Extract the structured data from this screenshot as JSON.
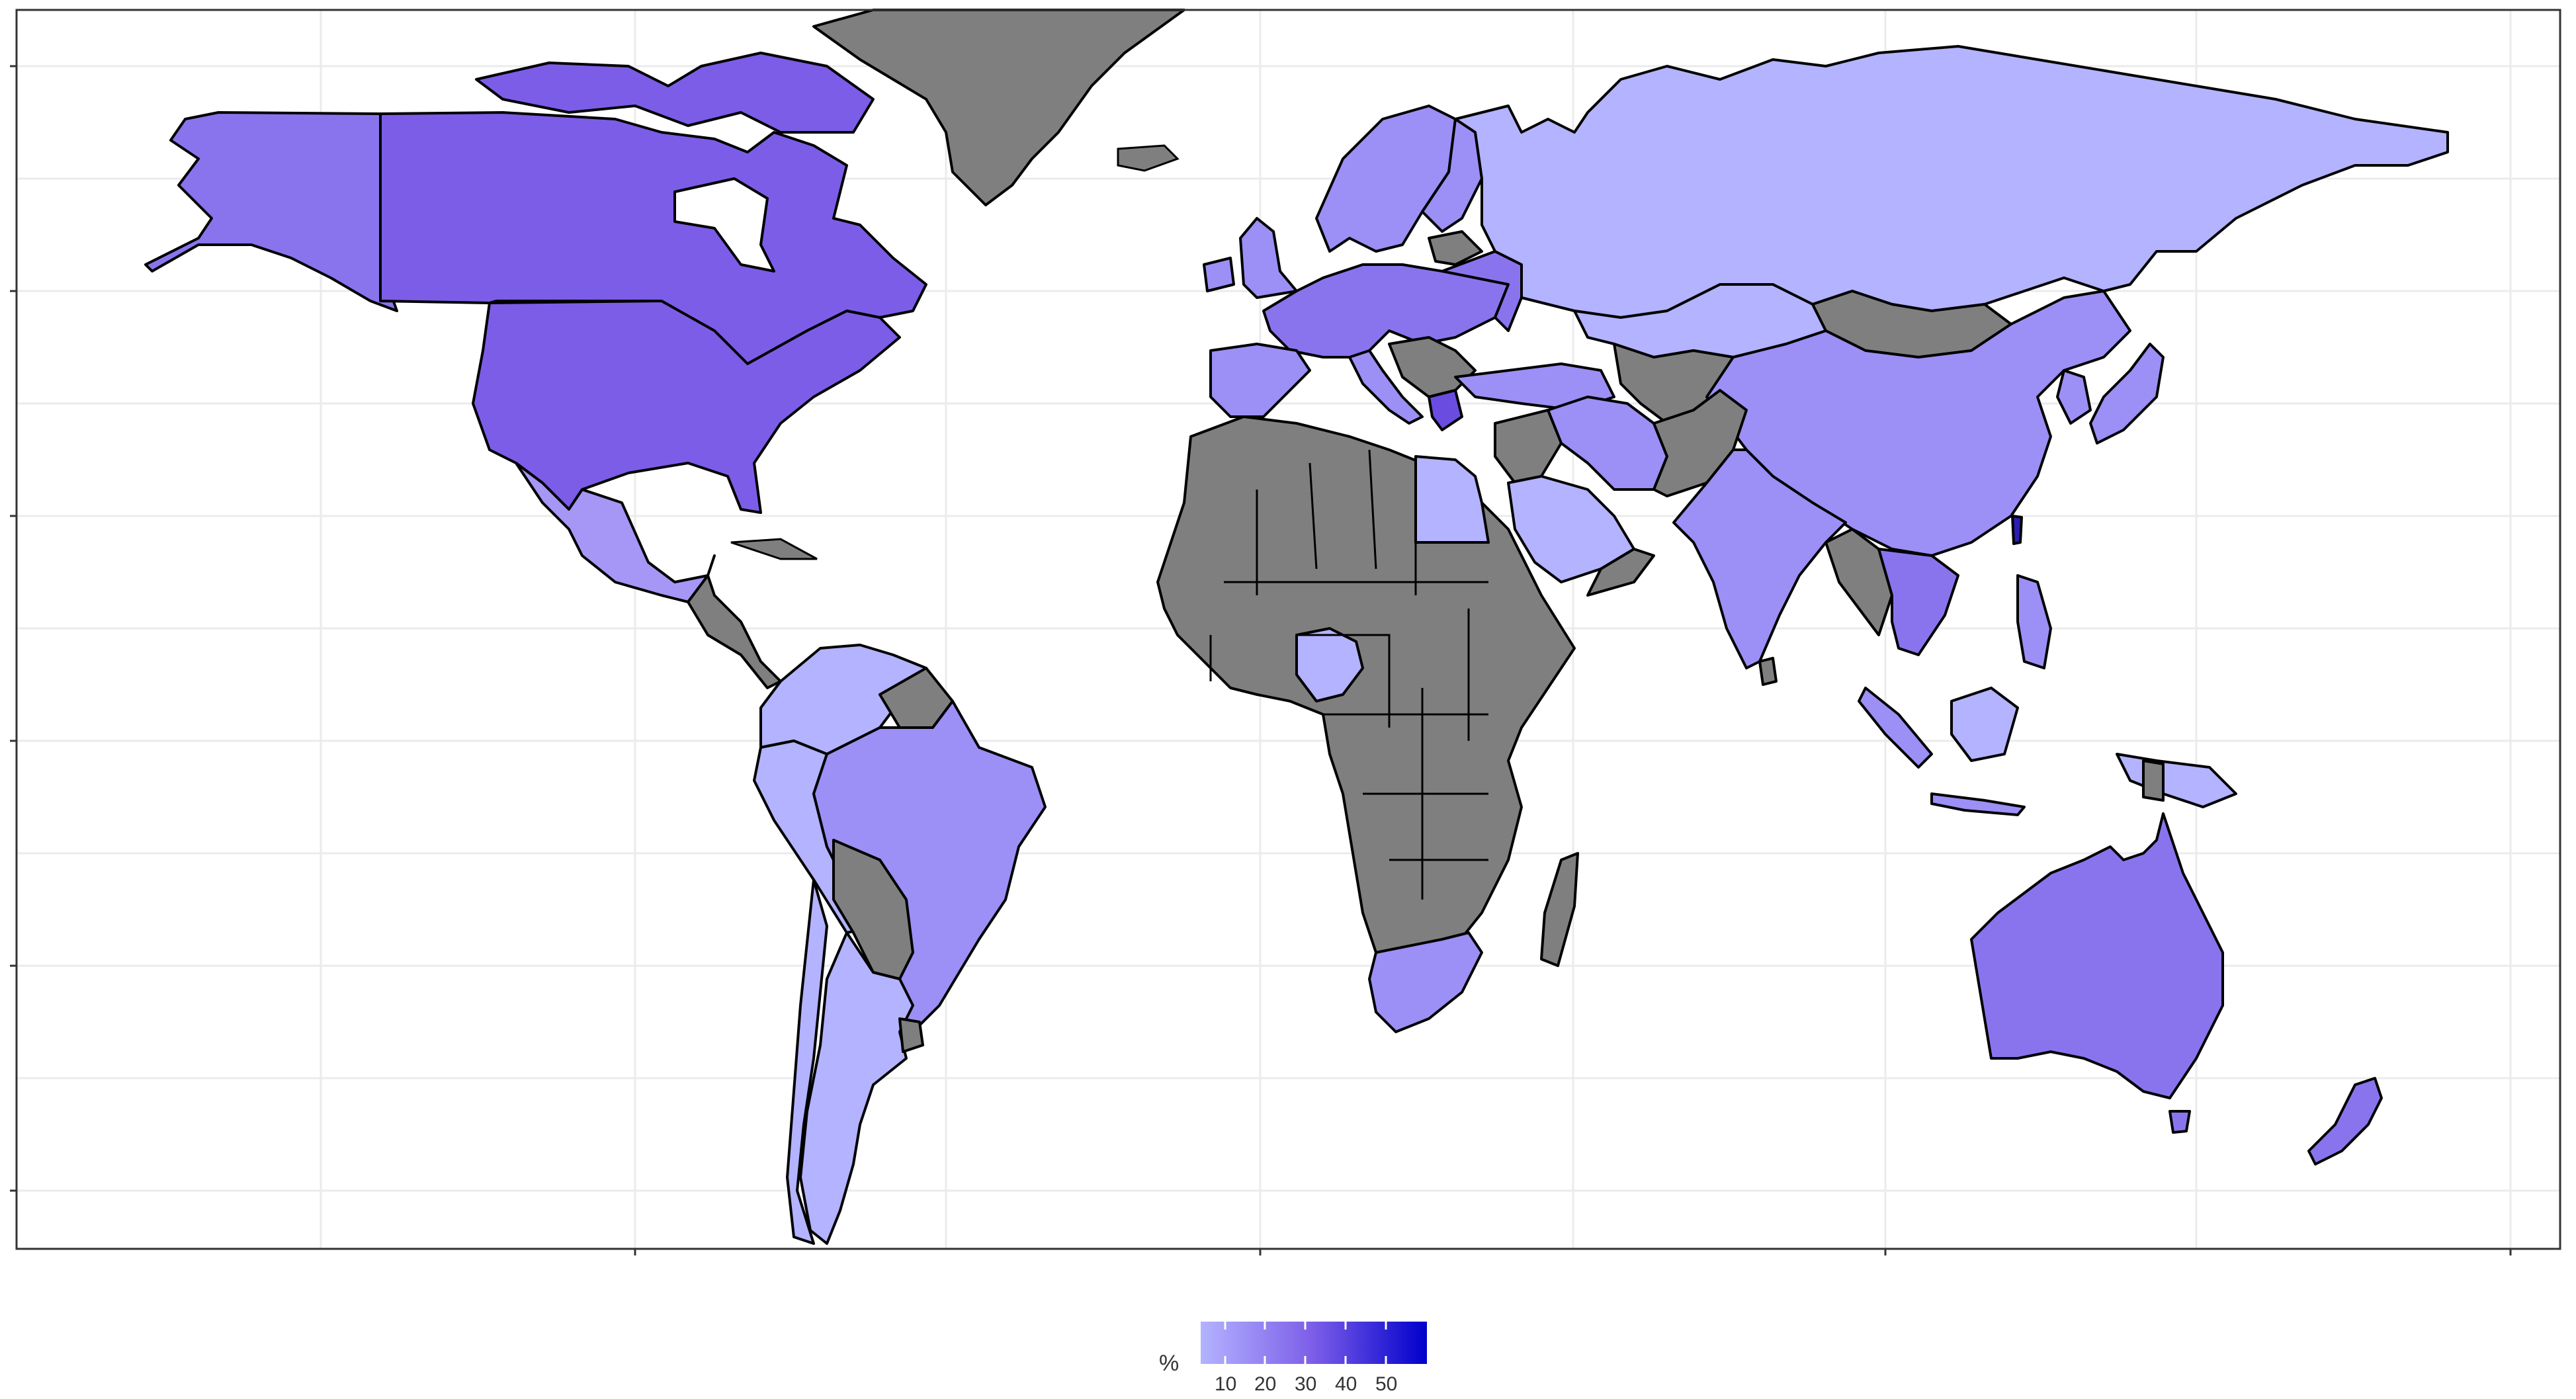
{
  "legend": {
    "title": "%",
    "ticks": [
      "10",
      "20",
      "30",
      "40",
      "50"
    ],
    "color_low": "#b3b3ff",
    "color_high": "#0000cc"
  },
  "colors": {
    "no_data": "#7f7f7f",
    "ocean": "#ffffff",
    "level_10": "#b3b3ff",
    "level_20": "#9c8ff5",
    "level_30": "#8a74ee",
    "level_35": "#7c5de8"
  },
  "regions": [
    {
      "name": "Alaska",
      "value": 35
    },
    {
      "name": "Canada",
      "value": 35
    },
    {
      "name": "United States",
      "value": 35
    },
    {
      "name": "Mexico",
      "value": 12
    },
    {
      "name": "Brazil",
      "value": 25
    },
    {
      "name": "Argentina",
      "value": 10
    },
    {
      "name": "Colombia",
      "value": 10
    },
    {
      "name": "Peru",
      "value": 10
    },
    {
      "name": "Uruguay",
      "value": 25
    },
    {
      "name": "Russia",
      "value": 8
    },
    {
      "name": "China",
      "value": 25
    },
    {
      "name": "Kazakhstan",
      "value": 8
    },
    {
      "name": "India",
      "value": 20
    },
    {
      "name": "Iran",
      "value": 20
    },
    {
      "name": "Saudi Arabia",
      "value": 8
    },
    {
      "name": "Egypt",
      "value": 8
    },
    {
      "name": "Nigeria",
      "value": 10
    },
    {
      "name": "South Africa",
      "value": 25
    },
    {
      "name": "Australia",
      "value": 32
    },
    {
      "name": "New Zealand",
      "value": 32
    },
    {
      "name": "Japan",
      "value": 25
    },
    {
      "name": "Taiwan",
      "value": 55
    },
    {
      "name": "Western Europe",
      "value": 28
    },
    {
      "name": "Scandinavia",
      "value": 25
    },
    {
      "name": "Greenland",
      "value": null
    },
    {
      "name": "Mongolia",
      "value": null
    },
    {
      "name": "Africa (no data)",
      "value": null
    }
  ]
}
